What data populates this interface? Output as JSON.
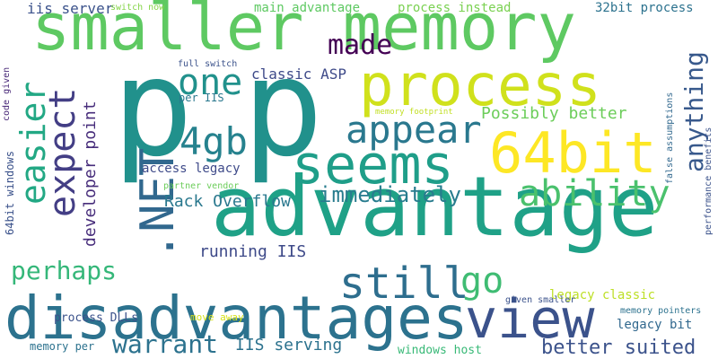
{
  "words": [
    {
      "text": "smaller memory",
      "color": "#5ec962",
      "rotate": false
    },
    {
      "text": "p",
      "color": "#21918c",
      "rotate": false
    },
    {
      "text": "p",
      "color": "#21918c",
      "rotate": false
    },
    {
      "text": "advantage",
      "color": "#1fa187",
      "rotate": false
    },
    {
      "text": "disadvantages",
      "color": "#2c728e",
      "rotate": false
    },
    {
      "text": "process",
      "color": "#d0e11c",
      "rotate": false
    },
    {
      "text": "view",
      "color": "#3b528b",
      "rotate": false
    },
    {
      "text": "seems",
      "color": "#1f9e89",
      "rotate": false
    },
    {
      "text": "64bit",
      "color": "#fde725",
      "rotate": false
    },
    {
      "text": ".NET",
      "color": "#31688e",
      "rotate": true
    },
    {
      "text": "appear",
      "color": "#2a788e",
      "rotate": false
    },
    {
      "text": "one",
      "color": "#21918c",
      "rotate": false
    },
    {
      "text": "4gb",
      "color": "#26828e",
      "rotate": false
    },
    {
      "text": "easier",
      "color": "#22a884",
      "rotate": true
    },
    {
      "text": "expect",
      "color": "#433e85",
      "rotate": true
    },
    {
      "text": "made",
      "color": "#440154",
      "rotate": false
    },
    {
      "text": "anything",
      "color": "#38598c",
      "rotate": true
    },
    {
      "text": "ability",
      "color": "#4ac16d",
      "rotate": false
    },
    {
      "text": "immediately",
      "color": "#287c8e",
      "rotate": false
    },
    {
      "text": "still",
      "color": "#2e6e8e",
      "rotate": false
    },
    {
      "text": "go",
      "color": "#3fbc73",
      "rotate": false
    },
    {
      "text": "perhaps",
      "color": "#35b779",
      "rotate": false
    },
    {
      "text": "warrant",
      "color": "#2c728e",
      "rotate": false
    },
    {
      "text": "Rack Overflow",
      "color": "#2a788e",
      "rotate": false
    },
    {
      "text": "running IIS",
      "color": "#3e4a89",
      "rotate": false
    },
    {
      "text": "IIS serving",
      "color": "#2c728e",
      "rotate": false
    },
    {
      "text": "better suited",
      "color": "#3b528b",
      "rotate": false
    },
    {
      "text": "Possibly better",
      "color": "#6ccd5a",
      "rotate": false
    },
    {
      "text": "classic ASP",
      "color": "#3e4a89",
      "rotate": false
    },
    {
      "text": "developer point",
      "color": "#472d7b",
      "rotate": true
    },
    {
      "text": "access legacy",
      "color": "#3e4a89",
      "rotate": false
    },
    {
      "text": "legacy classic",
      "color": "#bddf26",
      "rotate": false
    },
    {
      "text": "legacy bit",
      "color": "#31688e",
      "rotate": false
    },
    {
      "text": "iis server",
      "color": "#3b528b",
      "rotate": false
    },
    {
      "text": "main advantage",
      "color": "#5ec962",
      "rotate": false
    },
    {
      "text": "process instead",
      "color": "#7ad151",
      "rotate": false
    },
    {
      "text": "32bit process",
      "color": "#2c728e",
      "rotate": false
    },
    {
      "text": "switch now",
      "color": "#86d549",
      "rotate": false
    },
    {
      "text": "full switch",
      "color": "#3b528b",
      "rotate": false
    },
    {
      "text": "per IIS",
      "color": "#2a788e",
      "rotate": false
    },
    {
      "text": "partner vendor",
      "color": "#6ccd5a",
      "rotate": false
    },
    {
      "text": "memory footprint",
      "color": "#c2df23",
      "rotate": false
    },
    {
      "text": "process DLLs",
      "color": "#3b528b",
      "rotate": false
    },
    {
      "text": "move away",
      "color": "#d8e219",
      "rotate": false
    },
    {
      "text": "given smaller",
      "color": "#3b528b",
      "rotate": false
    },
    {
      "text": "memory pointers",
      "color": "#2c728e",
      "rotate": false
    },
    {
      "text": "windows host",
      "color": "#38b977",
      "rotate": false
    },
    {
      "text": "memory per",
      "color": "#2c728e",
      "rotate": false
    },
    {
      "text": "64bit windows",
      "color": "#3b528b",
      "rotate": true
    },
    {
      "text": "code given",
      "color": "#482878",
      "rotate": true
    },
    {
      "text": "false assumptions",
      "color": "#31688e",
      "rotate": true
    },
    {
      "text": "performance benefits",
      "color": "#3b528b",
      "rotate": true
    }
  ]
}
